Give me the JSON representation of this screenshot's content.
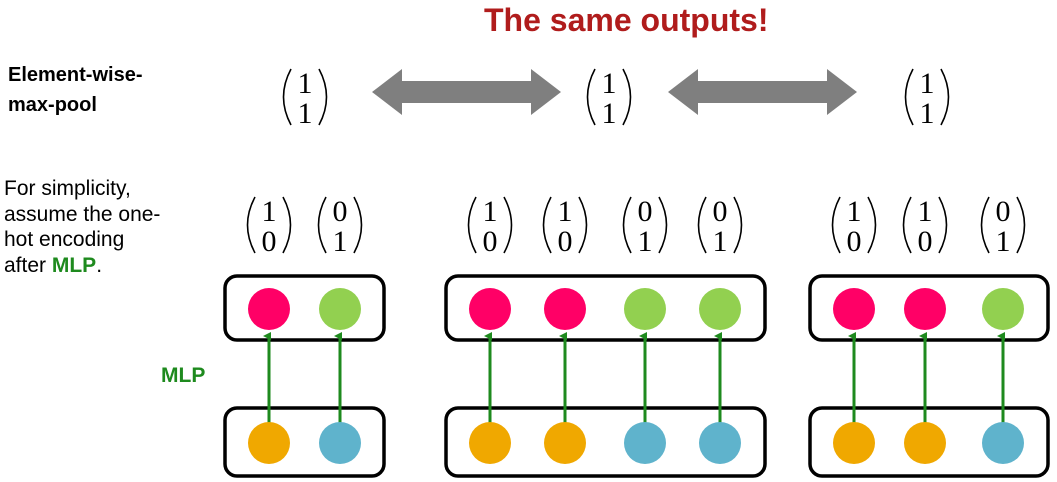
{
  "title": "The same outputs!",
  "pool_label_line1": "Element-wise-",
  "pool_label_line2": "max-pool",
  "note": {
    "line1": "For simplicity,",
    "line2": "assume the one-",
    "line3": "hot encoding",
    "line4_prefix": "after ",
    "line4_emph": "MLP",
    "line4_suffix": "."
  },
  "mlp_label": "MLP",
  "colors": {
    "pink": "#ff0066",
    "green_node": "#92d050",
    "orange": "#f0a800",
    "blue": "#5fb3cc",
    "arrow_green": "#1e8a1e",
    "double_arrow": "#7f7f7f",
    "title_red": "#b01c1c"
  },
  "pooled_outputs": [
    {
      "top": "1",
      "bottom": "1"
    },
    {
      "top": "1",
      "bottom": "1"
    },
    {
      "top": "1",
      "bottom": "1"
    }
  ],
  "groups": [
    {
      "mlp_outputs": [
        {
          "top": "1",
          "bottom": "0"
        },
        {
          "top": "0",
          "bottom": "1"
        }
      ],
      "output_nodes": [
        "pink",
        "green_node"
      ],
      "input_nodes": [
        "orange",
        "blue"
      ]
    },
    {
      "mlp_outputs": [
        {
          "top": "1",
          "bottom": "0"
        },
        {
          "top": "1",
          "bottom": "0"
        },
        {
          "top": "0",
          "bottom": "1"
        },
        {
          "top": "0",
          "bottom": "1"
        }
      ],
      "output_nodes": [
        "pink",
        "pink",
        "green_node",
        "green_node"
      ],
      "input_nodes": [
        "orange",
        "orange",
        "blue",
        "blue"
      ]
    },
    {
      "mlp_outputs": [
        {
          "top": "1",
          "bottom": "0"
        },
        {
          "top": "1",
          "bottom": "0"
        },
        {
          "top": "0",
          "bottom": "1"
        }
      ],
      "output_nodes": [
        "pink",
        "pink",
        "green_node"
      ],
      "input_nodes": [
        "orange",
        "orange",
        "blue"
      ]
    }
  ]
}
